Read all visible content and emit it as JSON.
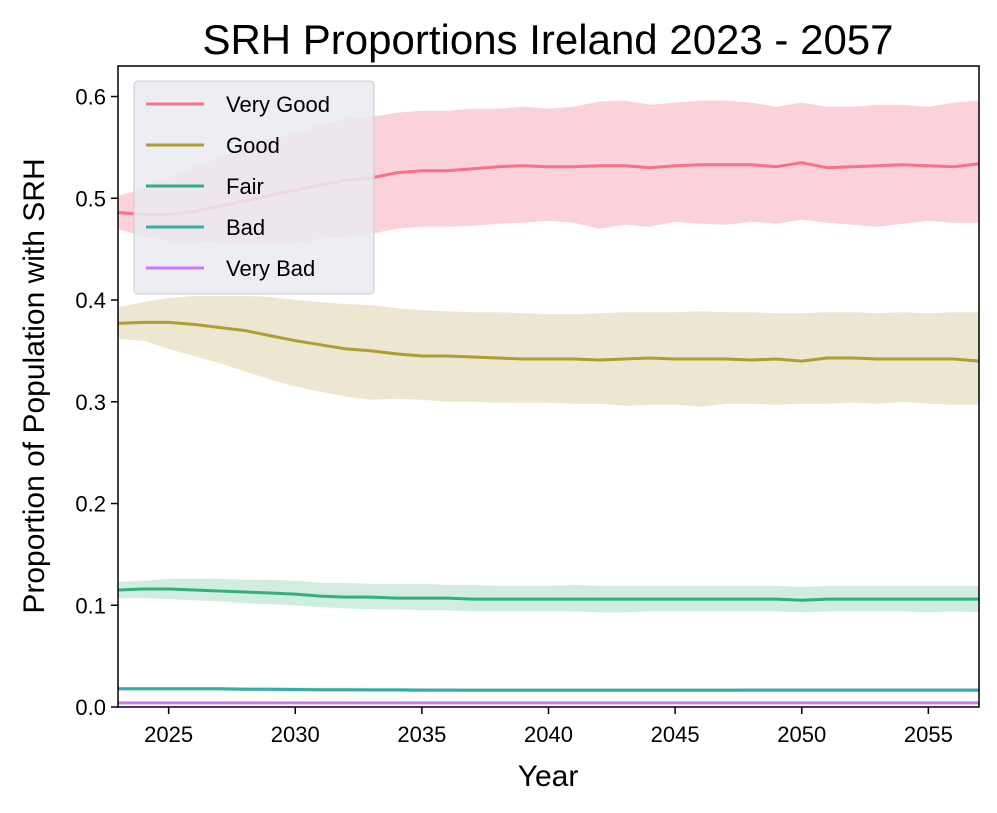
{
  "chart_data": {
    "type": "line",
    "title": "SRH Proportions Ireland 2023 - 2057",
    "xlabel": "Year",
    "ylabel": "Proportion of Population with SRH",
    "xlim": [
      2023,
      2057
    ],
    "ylim": [
      0.0,
      0.63
    ],
    "xticks": [
      2025,
      2030,
      2035,
      2040,
      2045,
      2050,
      2055
    ],
    "yticks": [
      0.0,
      0.1,
      0.2,
      0.3,
      0.4,
      0.5,
      0.6
    ],
    "x": [
      2023,
      2024,
      2025,
      2026,
      2027,
      2028,
      2029,
      2030,
      2031,
      2032,
      2033,
      2034,
      2035,
      2036,
      2037,
      2038,
      2039,
      2040,
      2041,
      2042,
      2043,
      2044,
      2045,
      2046,
      2047,
      2048,
      2049,
      2050,
      2051,
      2052,
      2053,
      2054,
      2055,
      2056,
      2057
    ],
    "legend_position": "top-left",
    "series": [
      {
        "name": "Very Good",
        "color": "#f77189",
        "band_color": "#f9b5c3",
        "values": [
          0.486,
          0.484,
          0.484,
          0.487,
          0.492,
          0.497,
          0.503,
          0.508,
          0.513,
          0.518,
          0.52,
          0.525,
          0.527,
          0.527,
          0.529,
          0.531,
          0.532,
          0.531,
          0.531,
          0.532,
          0.532,
          0.53,
          0.532,
          0.533,
          0.533,
          0.533,
          0.531,
          0.535,
          0.53,
          0.531,
          0.532,
          0.533,
          0.532,
          0.531,
          0.534
        ],
        "lower": [
          0.47,
          0.462,
          0.458,
          0.458,
          0.456,
          0.455,
          0.455,
          0.456,
          0.46,
          0.462,
          0.465,
          0.47,
          0.472,
          0.472,
          0.473,
          0.475,
          0.476,
          0.478,
          0.476,
          0.47,
          0.474,
          0.472,
          0.477,
          0.475,
          0.474,
          0.477,
          0.475,
          0.479,
          0.476,
          0.474,
          0.472,
          0.475,
          0.478,
          0.476,
          0.476
        ],
        "upper": [
          0.502,
          0.51,
          0.52,
          0.53,
          0.54,
          0.55,
          0.558,
          0.563,
          0.572,
          0.578,
          0.58,
          0.584,
          0.586,
          0.586,
          0.588,
          0.588,
          0.59,
          0.588,
          0.59,
          0.595,
          0.596,
          0.592,
          0.594,
          0.596,
          0.596,
          0.594,
          0.59,
          0.594,
          0.59,
          0.59,
          0.592,
          0.592,
          0.59,
          0.594,
          0.596
        ]
      },
      {
        "name": "Good",
        "color": "#ae9d31",
        "band_color": "#e2d8b5",
        "values": [
          0.377,
          0.378,
          0.378,
          0.376,
          0.373,
          0.37,
          0.365,
          0.36,
          0.356,
          0.352,
          0.35,
          0.347,
          0.345,
          0.345,
          0.344,
          0.343,
          0.342,
          0.342,
          0.342,
          0.341,
          0.342,
          0.343,
          0.342,
          0.342,
          0.342,
          0.341,
          0.342,
          0.34,
          0.343,
          0.343,
          0.342,
          0.342,
          0.342,
          0.342,
          0.34
        ],
        "lower": [
          0.362,
          0.36,
          0.352,
          0.345,
          0.338,
          0.33,
          0.322,
          0.315,
          0.31,
          0.305,
          0.302,
          0.303,
          0.302,
          0.3,
          0.3,
          0.299,
          0.299,
          0.299,
          0.298,
          0.298,
          0.296,
          0.297,
          0.297,
          0.295,
          0.298,
          0.298,
          0.297,
          0.298,
          0.298,
          0.299,
          0.298,
          0.3,
          0.298,
          0.297,
          0.297
        ],
        "upper": [
          0.393,
          0.398,
          0.402,
          0.404,
          0.404,
          0.404,
          0.403,
          0.4,
          0.398,
          0.396,
          0.395,
          0.392,
          0.39,
          0.389,
          0.388,
          0.388,
          0.387,
          0.386,
          0.386,
          0.387,
          0.388,
          0.388,
          0.388,
          0.389,
          0.388,
          0.388,
          0.387,
          0.387,
          0.388,
          0.388,
          0.387,
          0.388,
          0.387,
          0.388,
          0.388
        ]
      },
      {
        "name": "Fair",
        "color": "#33b07a",
        "band_color": "#b3e2cd",
        "values": [
          0.115,
          0.116,
          0.116,
          0.115,
          0.114,
          0.113,
          0.112,
          0.111,
          0.109,
          0.108,
          0.108,
          0.107,
          0.107,
          0.107,
          0.106,
          0.106,
          0.106,
          0.106,
          0.106,
          0.106,
          0.106,
          0.106,
          0.106,
          0.106,
          0.106,
          0.106,
          0.106,
          0.105,
          0.106,
          0.106,
          0.106,
          0.106,
          0.106,
          0.106,
          0.106
        ],
        "lower": [
          0.107,
          0.107,
          0.106,
          0.105,
          0.104,
          0.102,
          0.101,
          0.1,
          0.098,
          0.097,
          0.096,
          0.096,
          0.095,
          0.095,
          0.094,
          0.094,
          0.094,
          0.094,
          0.094,
          0.093,
          0.093,
          0.094,
          0.094,
          0.094,
          0.094,
          0.094,
          0.094,
          0.093,
          0.094,
          0.094,
          0.094,
          0.094,
          0.093,
          0.094,
          0.093
        ],
        "upper": [
          0.123,
          0.124,
          0.126,
          0.126,
          0.126,
          0.125,
          0.125,
          0.124,
          0.122,
          0.122,
          0.121,
          0.121,
          0.121,
          0.12,
          0.12,
          0.119,
          0.119,
          0.119,
          0.12,
          0.119,
          0.119,
          0.119,
          0.119,
          0.119,
          0.119,
          0.119,
          0.119,
          0.118,
          0.119,
          0.119,
          0.119,
          0.119,
          0.119,
          0.119,
          0.119
        ]
      },
      {
        "name": "Bad",
        "color": "#36ada4",
        "band_color": "#aed8e3",
        "values": [
          0.018,
          0.018,
          0.018,
          0.018,
          0.018,
          0.0175,
          0.0175,
          0.0172,
          0.017,
          0.017,
          0.0168,
          0.0168,
          0.0166,
          0.0166,
          0.0165,
          0.0165,
          0.0165,
          0.0165,
          0.0165,
          0.0165,
          0.0165,
          0.0165,
          0.0165,
          0.0165,
          0.0165,
          0.0166,
          0.0166,
          0.0166,
          0.0166,
          0.0166,
          0.0166,
          0.0166,
          0.0166,
          0.0166,
          0.0166
        ],
        "lower": [
          0.016,
          0.016,
          0.016,
          0.016,
          0.016,
          0.0155,
          0.0155,
          0.0152,
          0.015,
          0.015,
          0.0148,
          0.0148,
          0.0146,
          0.0146,
          0.0145,
          0.0145,
          0.0145,
          0.0145,
          0.0145,
          0.0145,
          0.0145,
          0.0145,
          0.0145,
          0.0145,
          0.0145,
          0.0146,
          0.0146,
          0.0146,
          0.0146,
          0.0146,
          0.0146,
          0.0146,
          0.0146,
          0.0146,
          0.0146
        ],
        "upper": [
          0.02,
          0.02,
          0.02,
          0.02,
          0.02,
          0.0195,
          0.0195,
          0.0192,
          0.019,
          0.019,
          0.0188,
          0.0188,
          0.0186,
          0.0186,
          0.0185,
          0.0185,
          0.0185,
          0.0185,
          0.0185,
          0.0185,
          0.0185,
          0.0185,
          0.0185,
          0.0185,
          0.0185,
          0.0186,
          0.0186,
          0.0186,
          0.0186,
          0.0186,
          0.0186,
          0.0186,
          0.0186,
          0.0186,
          0.0186
        ]
      },
      {
        "name": "Very Bad",
        "color": "#cc7af4",
        "band_color": "#ebcbf9",
        "values": [
          0.004,
          0.004,
          0.004,
          0.004,
          0.004,
          0.004,
          0.004,
          0.004,
          0.004,
          0.004,
          0.004,
          0.004,
          0.004,
          0.004,
          0.004,
          0.004,
          0.004,
          0.004,
          0.004,
          0.004,
          0.004,
          0.004,
          0.004,
          0.004,
          0.004,
          0.004,
          0.004,
          0.004,
          0.004,
          0.004,
          0.004,
          0.004,
          0.004,
          0.004,
          0.004
        ],
        "lower": [
          0.003,
          0.003,
          0.003,
          0.003,
          0.003,
          0.003,
          0.003,
          0.003,
          0.003,
          0.003,
          0.003,
          0.003,
          0.003,
          0.003,
          0.003,
          0.003,
          0.003,
          0.003,
          0.003,
          0.003,
          0.003,
          0.003,
          0.003,
          0.003,
          0.003,
          0.003,
          0.003,
          0.003,
          0.003,
          0.003,
          0.003,
          0.003,
          0.003,
          0.003,
          0.003
        ],
        "upper": [
          0.005,
          0.005,
          0.005,
          0.005,
          0.005,
          0.005,
          0.005,
          0.005,
          0.005,
          0.005,
          0.005,
          0.005,
          0.005,
          0.005,
          0.005,
          0.005,
          0.005,
          0.005,
          0.005,
          0.005,
          0.005,
          0.005,
          0.005,
          0.005,
          0.005,
          0.005,
          0.005,
          0.005,
          0.005,
          0.005,
          0.005,
          0.005,
          0.005,
          0.005,
          0.005
        ]
      }
    ]
  }
}
